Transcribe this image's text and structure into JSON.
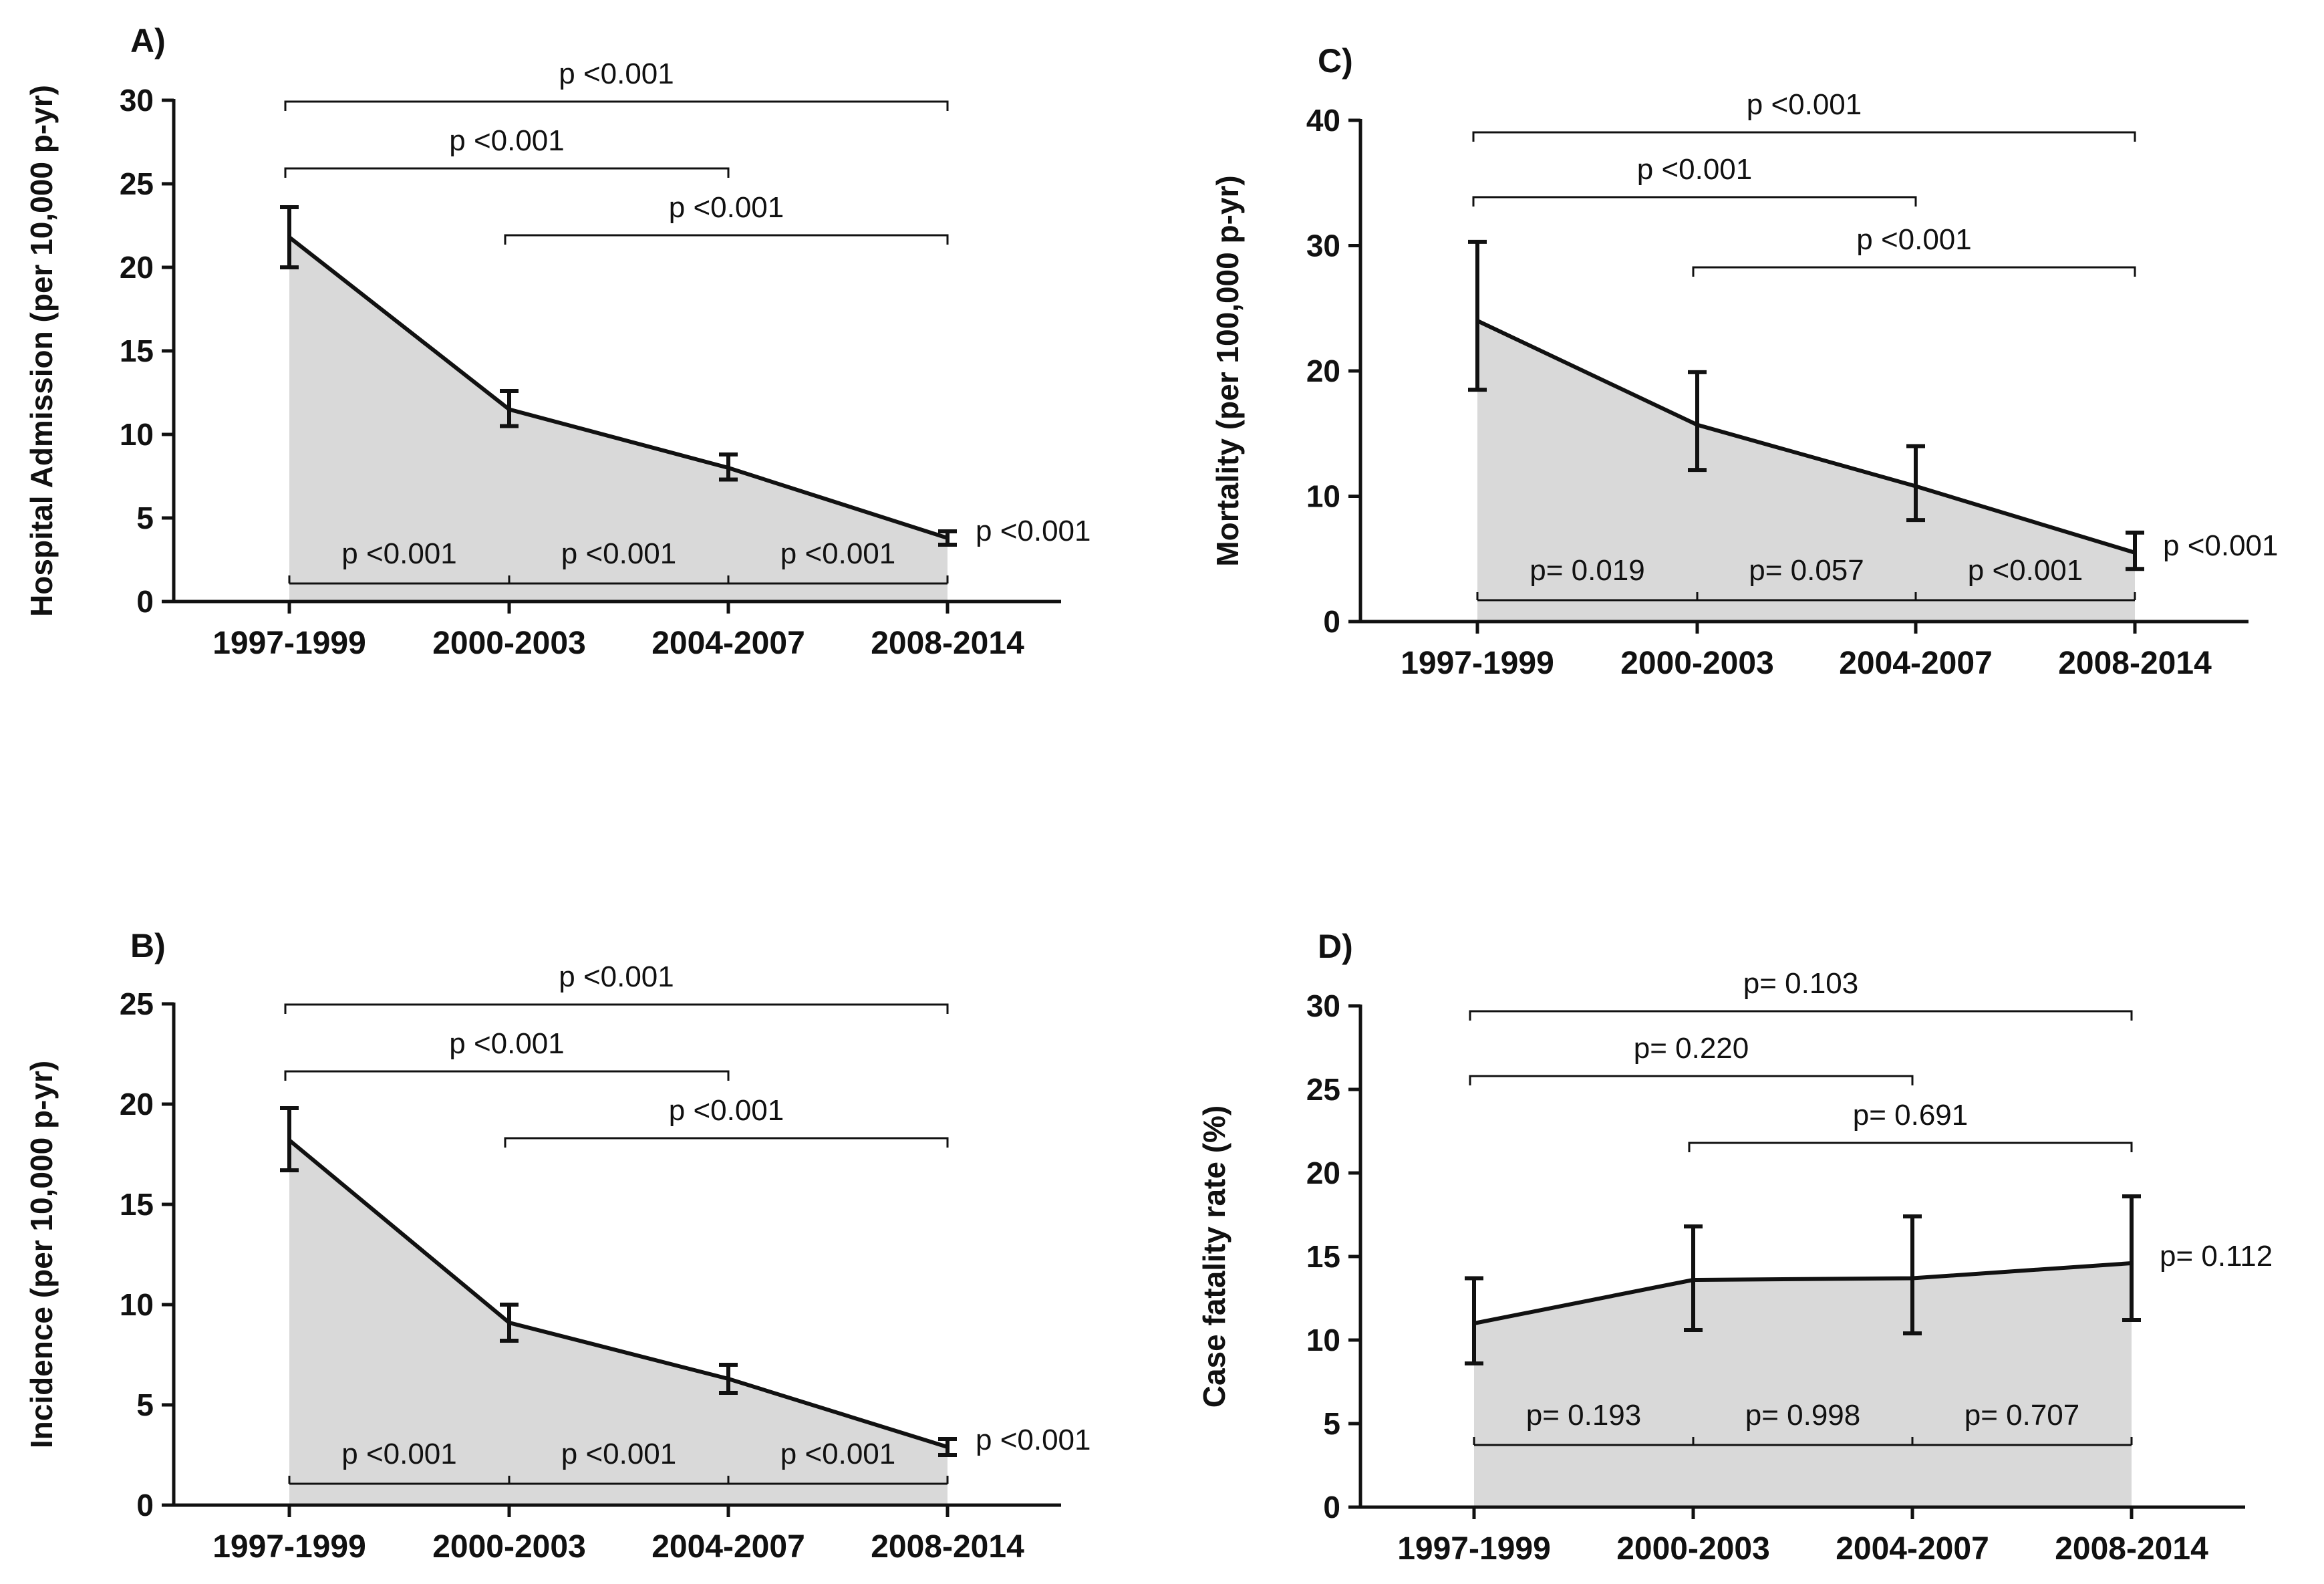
{
  "chart_data": [
    {
      "panel": "A)",
      "type": "area",
      "categories": [
        "1997-1999",
        "2000-2003",
        "2004-2007",
        "2008-2014"
      ],
      "values": [
        21.8,
        11.5,
        8.0,
        3.8
      ],
      "error_low": [
        20.0,
        10.5,
        7.3,
        3.4
      ],
      "error_high": [
        23.6,
        12.6,
        8.8,
        4.2
      ],
      "ylabel": "Hospital Admission (per 10,000 p-yr)",
      "ylim": [
        0,
        30
      ],
      "yticks": [
        0,
        5,
        10,
        15,
        20,
        25,
        30
      ],
      "top_brackets": [
        {
          "from": 0,
          "to": 3,
          "label": "p <0.001"
        },
        {
          "from": 0,
          "to": 2,
          "label": "p <0.001"
        },
        {
          "from": 1,
          "to": 3,
          "label": "p <0.001"
        }
      ],
      "bottom_brackets": [
        {
          "from": 0,
          "to": 1,
          "label": "p <0.001"
        },
        {
          "from": 1,
          "to": 2,
          "label": "p <0.001"
        },
        {
          "from": 2,
          "to": 3,
          "label": "p <0.001"
        }
      ],
      "trend_label": "p <0.001"
    },
    {
      "panel": "B)",
      "type": "area",
      "categories": [
        "1997-1999",
        "2000-2003",
        "2004-2007",
        "2008-2014"
      ],
      "values": [
        18.2,
        9.1,
        6.3,
        2.9
      ],
      "error_low": [
        16.7,
        8.2,
        5.6,
        2.5
      ],
      "error_high": [
        19.8,
        10.0,
        7.0,
        3.3
      ],
      "ylabel": "Incidence (per 10,000 p-yr)",
      "ylim": [
        0,
        25
      ],
      "yticks": [
        0,
        5,
        10,
        15,
        20,
        25
      ],
      "top_brackets": [
        {
          "from": 0,
          "to": 3,
          "label": "p <0.001"
        },
        {
          "from": 0,
          "to": 2,
          "label": "p <0.001"
        },
        {
          "from": 1,
          "to": 3,
          "label": "p <0.001"
        }
      ],
      "bottom_brackets": [
        {
          "from": 0,
          "to": 1,
          "label": "p <0.001"
        },
        {
          "from": 1,
          "to": 2,
          "label": "p <0.001"
        },
        {
          "from": 2,
          "to": 3,
          "label": "p <0.001"
        }
      ],
      "trend_label": "p <0.001"
    },
    {
      "panel": "C)",
      "type": "area",
      "categories": [
        "1997-1999",
        "2000-2003",
        "2004-2007",
        "2008-2014"
      ],
      "values": [
        24.0,
        15.7,
        10.8,
        5.5
      ],
      "error_low": [
        18.5,
        12.1,
        8.1,
        4.2
      ],
      "error_high": [
        30.3,
        19.9,
        14.0,
        7.1
      ],
      "ylabel": "Mortality (per 100,000 p-yr)",
      "ylim": [
        0,
        40
      ],
      "yticks": [
        0,
        10,
        20,
        30,
        40
      ],
      "top_brackets": [
        {
          "from": 0,
          "to": 3,
          "label": "p <0.001"
        },
        {
          "from": 0,
          "to": 2,
          "label": "p <0.001"
        },
        {
          "from": 1,
          "to": 3,
          "label": "p <0.001"
        }
      ],
      "bottom_brackets": [
        {
          "from": 0,
          "to": 1,
          "label": "p= 0.019"
        },
        {
          "from": 1,
          "to": 2,
          "label": "p= 0.057"
        },
        {
          "from": 2,
          "to": 3,
          "label": "p <0.001"
        }
      ],
      "trend_label": "p <0.001"
    },
    {
      "panel": "D)",
      "type": "area",
      "categories": [
        "1997-1999",
        "2000-2003",
        "2004-2007",
        "2008-2014"
      ],
      "values": [
        11.0,
        13.6,
        13.7,
        14.6
      ],
      "error_low": [
        8.6,
        10.6,
        10.4,
        11.2
      ],
      "error_high": [
        13.7,
        16.8,
        17.4,
        18.6
      ],
      "ylabel": "Case fatality rate (%)",
      "ylim": [
        0,
        30
      ],
      "yticks": [
        0,
        5,
        10,
        15,
        20,
        25,
        30
      ],
      "top_brackets": [
        {
          "from": 0,
          "to": 3,
          "label": "p= 0.103"
        },
        {
          "from": 0,
          "to": 2,
          "label": "p= 0.220"
        },
        {
          "from": 1,
          "to": 3,
          "label": "p= 0.691"
        }
      ],
      "bottom_brackets": [
        {
          "from": 0,
          "to": 1,
          "label": "p= 0.193"
        },
        {
          "from": 1,
          "to": 2,
          "label": "p= 0.998"
        },
        {
          "from": 2,
          "to": 3,
          "label": "p= 0.707"
        }
      ],
      "trend_label": "p= 0.112"
    }
  ]
}
